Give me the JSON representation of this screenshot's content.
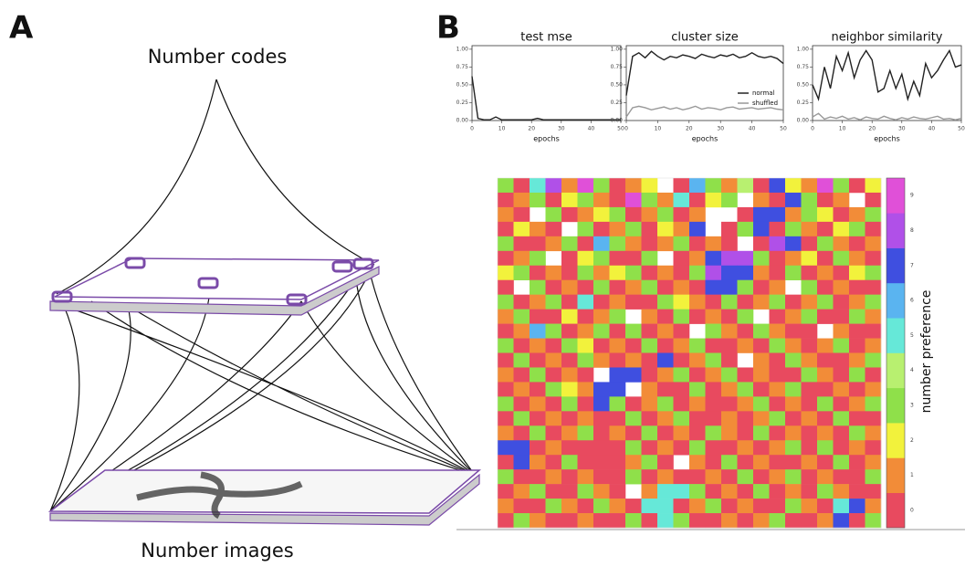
{
  "panel_labels": [
    "A",
    "B"
  ],
  "diagram": {
    "top_label": "Number codes",
    "bottom_label": "Number images"
  },
  "chart_data": [
    {
      "type": "line",
      "title": "test mse",
      "x_label": "epochs",
      "x": [
        0,
        2,
        4,
        6,
        8,
        10,
        12,
        14,
        16,
        18,
        20,
        22,
        24,
        26,
        28,
        30,
        32,
        34,
        36,
        38,
        40,
        42,
        44,
        46,
        48,
        50
      ],
      "xlim": [
        0,
        50
      ],
      "xticks": [
        0,
        10,
        20,
        30,
        40,
        50
      ],
      "ylim": [
        0,
        1.05
      ],
      "yticks": [
        {
          "value": 0,
          "label": "0.00"
        },
        {
          "value": 0.25,
          "label": "0.25"
        },
        {
          "value": 0.5,
          "label": "0.50"
        },
        {
          "value": 0.75,
          "label": "0.75"
        },
        {
          "value": 1,
          "label": "1.00"
        }
      ],
      "series": [
        {
          "color": "#222222",
          "values": [
            0.62,
            0.03,
            0.01,
            0.01,
            0.05,
            0.01,
            0.01,
            0.01,
            0.01,
            0.01,
            0.01,
            0.03,
            0.01,
            0.01,
            0.01,
            0.01,
            0.01,
            0.01,
            0.01,
            0.01,
            0.01,
            0.01,
            0.01,
            0.01,
            0.01,
            0.01
          ]
        }
      ]
    },
    {
      "type": "line",
      "title": "cluster size",
      "x_label": "epochs",
      "x": [
        0,
        2,
        4,
        6,
        8,
        10,
        12,
        14,
        16,
        18,
        20,
        22,
        24,
        26,
        28,
        30,
        32,
        34,
        36,
        38,
        40,
        42,
        44,
        46,
        48,
        50
      ],
      "xlim": [
        0,
        50
      ],
      "xticks": [
        0,
        10,
        20,
        30,
        40,
        50
      ],
      "ylim": [
        0,
        1.05
      ],
      "yticks": [
        {
          "value": 0,
          "label": "0.00"
        },
        {
          "value": 0.25,
          "label": "0.25"
        },
        {
          "value": 0.5,
          "label": "0.50"
        },
        {
          "value": 0.75,
          "label": "0.75"
        },
        {
          "value": 1,
          "label": "1.00"
        }
      ],
      "legend": "lower right",
      "series": [
        {
          "name": "normal",
          "color": "#222222",
          "values": [
            0.35,
            0.9,
            0.95,
            0.88,
            0.97,
            0.9,
            0.85,
            0.9,
            0.88,
            0.92,
            0.9,
            0.87,
            0.93,
            0.9,
            0.88,
            0.92,
            0.9,
            0.93,
            0.88,
            0.9,
            0.95,
            0.9,
            0.88,
            0.9,
            0.87,
            0.8
          ]
        },
        {
          "name": "shuffled",
          "color": "#999999",
          "values": [
            0.05,
            0.18,
            0.2,
            0.18,
            0.15,
            0.17,
            0.19,
            0.16,
            0.18,
            0.15,
            0.17,
            0.2,
            0.16,
            0.18,
            0.17,
            0.15,
            0.18,
            0.19,
            0.16,
            0.17,
            0.18,
            0.16,
            0.17,
            0.18,
            0.16,
            0.15
          ]
        }
      ]
    },
    {
      "type": "line",
      "title": "neighbor similarity",
      "x_label": "epochs",
      "x": [
        0,
        2,
        4,
        6,
        8,
        10,
        12,
        14,
        16,
        18,
        20,
        22,
        24,
        26,
        28,
        30,
        32,
        34,
        36,
        38,
        40,
        42,
        44,
        46,
        48,
        50
      ],
      "xlim": [
        0,
        50
      ],
      "xticks": [
        0,
        10,
        20,
        30,
        40,
        50
      ],
      "ylim": [
        0,
        1.05
      ],
      "yticks": [
        {
          "value": 0,
          "label": "0.00"
        },
        {
          "value": 0.25,
          "label": "0.25"
        },
        {
          "value": 0.5,
          "label": "0.50"
        },
        {
          "value": 0.75,
          "label": "0.75"
        },
        {
          "value": 1,
          "label": "1.00"
        }
      ],
      "series": [
        {
          "color": "#222222",
          "values": [
            0.5,
            0.3,
            0.75,
            0.45,
            0.9,
            0.7,
            0.95,
            0.6,
            0.85,
            0.98,
            0.85,
            0.4,
            0.45,
            0.7,
            0.45,
            0.65,
            0.3,
            0.55,
            0.35,
            0.8,
            0.6,
            0.7,
            0.85,
            0.98,
            0.75,
            0.78
          ]
        },
        {
          "color": "#999999",
          "values": [
            0.05,
            0.1,
            0.02,
            0.05,
            0.03,
            0.06,
            0.02,
            0.04,
            0.01,
            0.05,
            0.03,
            0.02,
            0.06,
            0.03,
            0.01,
            0.04,
            0.02,
            0.05,
            0.03,
            0.02,
            0.04,
            0.06,
            0.02,
            0.03,
            0.01,
            0.03
          ]
        }
      ]
    },
    {
      "type": "heatmap",
      "colorbar_label": "number preference",
      "ticks": [
        0,
        1,
        2,
        3,
        4,
        5,
        6,
        7,
        8,
        9
      ],
      "colors": [
        "#e84a5f",
        "#f28c38",
        "#f2f23c",
        "#8fe04a",
        "#b8f070",
        "#66e8d8",
        "#5ab4f0",
        "#3f4fe0",
        "#b050e8",
        "#e050d8"
      ],
      "values": [
        [
          3,
          0,
          5,
          8,
          1,
          9,
          3,
          0,
          1,
          2,
          null,
          0,
          6,
          3,
          1,
          4,
          0,
          7,
          2,
          1,
          9,
          3,
          0,
          2
        ],
        [
          0,
          1,
          3,
          0,
          2,
          3,
          1,
          0,
          9,
          3,
          1,
          5,
          0,
          2,
          3,
          null,
          1,
          0,
          7,
          3,
          0,
          1,
          null,
          0
        ],
        [
          1,
          0,
          null,
          3,
          0,
          1,
          2,
          3,
          0,
          1,
          3,
          0,
          1,
          null,
          null,
          0,
          7,
          7,
          1,
          3,
          2,
          0,
          1,
          3
        ],
        [
          0,
          2,
          1,
          0,
          null,
          3,
          0,
          1,
          3,
          0,
          2,
          1,
          7,
          null,
          0,
          3,
          7,
          0,
          3,
          1,
          0,
          2,
          3,
          0
        ],
        [
          3,
          0,
          0,
          1,
          3,
          0,
          6,
          3,
          1,
          0,
          1,
          3,
          0,
          1,
          0,
          null,
          0,
          8,
          7,
          0,
          3,
          1,
          0,
          1
        ],
        [
          0,
          1,
          3,
          null,
          0,
          2,
          3,
          0,
          0,
          3,
          null,
          0,
          1,
          7,
          8,
          8,
          3,
          0,
          1,
          2,
          0,
          3,
          1,
          0
        ],
        [
          2,
          3,
          0,
          1,
          0,
          3,
          1,
          2,
          3,
          0,
          1,
          0,
          3,
          8,
          7,
          7,
          1,
          0,
          3,
          0,
          1,
          0,
          2,
          3
        ],
        [
          0,
          null,
          3,
          0,
          1,
          0,
          3,
          0,
          1,
          3,
          0,
          1,
          0,
          7,
          7,
          3,
          0,
          1,
          null,
          3,
          0,
          1,
          0,
          0
        ],
        [
          3,
          0,
          1,
          3,
          0,
          5,
          0,
          1,
          0,
          0,
          3,
          2,
          1,
          0,
          3,
          0,
          1,
          3,
          0,
          1,
          3,
          0,
          1,
          3
        ],
        [
          1,
          3,
          0,
          0,
          2,
          0,
          1,
          3,
          null,
          1,
          0,
          3,
          0,
          1,
          0,
          3,
          null,
          0,
          1,
          3,
          0,
          0,
          3,
          1
        ],
        [
          0,
          1,
          6,
          3,
          0,
          1,
          3,
          0,
          3,
          0,
          1,
          0,
          null,
          3,
          1,
          0,
          3,
          1,
          0,
          0,
          null,
          1,
          0,
          0
        ],
        [
          3,
          0,
          1,
          0,
          3,
          2,
          0,
          1,
          0,
          3,
          0,
          1,
          3,
          0,
          0,
          1,
          0,
          3,
          1,
          0,
          1,
          3,
          0,
          1
        ],
        [
          0,
          3,
          0,
          1,
          0,
          3,
          1,
          0,
          1,
          0,
          7,
          0,
          1,
          3,
          0,
          null,
          1,
          0,
          3,
          1,
          0,
          0,
          1,
          3
        ],
        [
          1,
          0,
          3,
          0,
          1,
          0,
          null,
          7,
          7,
          0,
          1,
          3,
          0,
          1,
          3,
          0,
          1,
          0,
          0,
          3,
          1,
          0,
          3,
          0
        ],
        [
          0,
          1,
          0,
          3,
          2,
          1,
          7,
          7,
          null,
          1,
          0,
          0,
          3,
          0,
          1,
          3,
          0,
          1,
          3,
          0,
          0,
          1,
          0,
          1
        ],
        [
          3,
          0,
          1,
          0,
          3,
          0,
          7,
          3,
          0,
          1,
          3,
          0,
          1,
          0,
          0,
          1,
          3,
          0,
          1,
          0,
          3,
          0,
          1,
          3
        ],
        [
          0,
          3,
          0,
          1,
          0,
          1,
          0,
          0,
          3,
          0,
          1,
          3,
          0,
          0,
          1,
          0,
          1,
          3,
          0,
          1,
          0,
          3,
          0,
          0
        ],
        [
          1,
          0,
          3,
          0,
          1,
          3,
          0,
          1,
          0,
          3,
          0,
          1,
          0,
          3,
          1,
          0,
          3,
          0,
          1,
          0,
          1,
          0,
          3,
          1
        ],
        [
          7,
          7,
          0,
          1,
          0,
          0,
          0,
          0,
          3,
          0,
          1,
          0,
          3,
          0,
          0,
          1,
          0,
          1,
          3,
          0,
          3,
          0,
          1,
          0
        ],
        [
          0,
          7,
          1,
          0,
          3,
          0,
          0,
          0,
          1,
          3,
          0,
          null,
          1,
          0,
          3,
          0,
          1,
          0,
          0,
          1,
          0,
          3,
          0,
          1
        ],
        [
          3,
          0,
          0,
          1,
          0,
          1,
          0,
          0,
          3,
          0,
          1,
          0,
          0,
          1,
          0,
          3,
          0,
          1,
          3,
          0,
          1,
          0,
          0,
          3
        ],
        [
          0,
          1,
          3,
          0,
          0,
          3,
          1,
          0,
          null,
          1,
          5,
          5,
          3,
          0,
          1,
          0,
          3,
          0,
          1,
          0,
          3,
          1,
          0,
          0
        ],
        [
          1,
          0,
          0,
          3,
          1,
          0,
          3,
          1,
          0,
          5,
          5,
          0,
          1,
          3,
          0,
          1,
          0,
          0,
          3,
          1,
          0,
          5,
          7,
          1
        ],
        [
          0,
          3,
          1,
          0,
          0,
          1,
          0,
          0,
          3,
          0,
          5,
          3,
          0,
          0,
          1,
          0,
          1,
          3,
          0,
          0,
          1,
          7,
          0,
          3
        ]
      ]
    }
  ]
}
